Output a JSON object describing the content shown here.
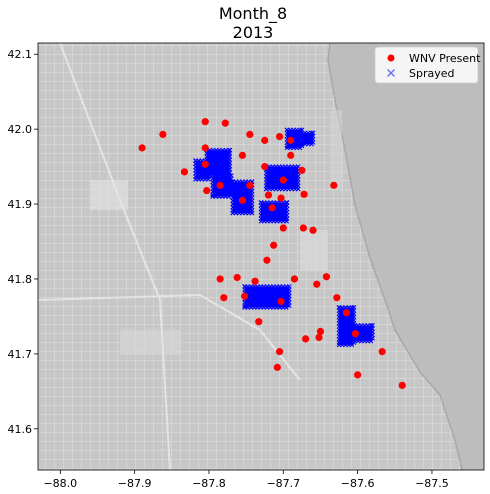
{
  "chart_data": {
    "type": "scatter",
    "title": "Month_8",
    "subtitle": "2013",
    "xlim": [
      -88.03,
      -87.43
    ],
    "ylim": [
      41.545,
      42.115
    ],
    "xticks": [
      -88.0,
      -87.9,
      -87.8,
      -87.7,
      -87.6,
      -87.5
    ],
    "xtick_labels": [
      "−88.0",
      "−87.9",
      "−87.8",
      "−87.7",
      "−87.6",
      "−87.5"
    ],
    "yticks": [
      41.6,
      41.7,
      41.8,
      41.9,
      42.0,
      42.1
    ],
    "ytick_labels": [
      "41.6",
      "41.7",
      "41.8",
      "41.9",
      "42.0",
      "42.1"
    ],
    "background": "map",
    "legend": {
      "placement": "top-right",
      "entries": [
        {
          "label": "WNV Present",
          "marker": "circle",
          "color": "#ff0000"
        },
        {
          "label": "Sprayed",
          "marker": "x",
          "color": "#6a6aff"
        }
      ]
    },
    "colors": {
      "wnv": "#ff0000",
      "sprayed": "#0000ff",
      "map_bg": "#bdbdbd"
    },
    "series": [
      {
        "name": "WNV Present",
        "points": [
          [
            -87.89,
            41.975
          ],
          [
            -87.862,
            41.993
          ],
          [
            -87.805,
            42.01
          ],
          [
            -87.778,
            42.008
          ],
          [
            -87.805,
            41.975
          ],
          [
            -87.755,
            41.965
          ],
          [
            -87.745,
            41.993
          ],
          [
            -87.725,
            41.985
          ],
          [
            -87.69,
            41.985
          ],
          [
            -87.705,
            41.99
          ],
          [
            -87.69,
            41.965
          ],
          [
            -87.725,
            41.95
          ],
          [
            -87.833,
            41.943
          ],
          [
            -87.805,
            41.953
          ],
          [
            -87.785,
            41.925
          ],
          [
            -87.803,
            41.918
          ],
          [
            -87.755,
            41.905
          ],
          [
            -87.745,
            41.925
          ],
          [
            -87.7,
            41.932
          ],
          [
            -87.675,
            41.945
          ],
          [
            -87.72,
            41.912
          ],
          [
            -87.703,
            41.908
          ],
          [
            -87.715,
            41.895
          ],
          [
            -87.672,
            41.913
          ],
          [
            -87.632,
            41.925
          ],
          [
            -87.7,
            41.868
          ],
          [
            -87.673,
            41.868
          ],
          [
            -87.66,
            41.865
          ],
          [
            -87.713,
            41.845
          ],
          [
            -87.722,
            41.825
          ],
          [
            -87.785,
            41.8
          ],
          [
            -87.762,
            41.802
          ],
          [
            -87.738,
            41.797
          ],
          [
            -87.685,
            41.8
          ],
          [
            -87.642,
            41.803
          ],
          [
            -87.655,
            41.793
          ],
          [
            -87.78,
            41.775
          ],
          [
            -87.752,
            41.777
          ],
          [
            -87.703,
            41.77
          ],
          [
            -87.628,
            41.775
          ],
          [
            -87.615,
            41.755
          ],
          [
            -87.733,
            41.743
          ],
          [
            -87.65,
            41.73
          ],
          [
            -87.652,
            41.722
          ],
          [
            -87.67,
            41.72
          ],
          [
            -87.603,
            41.727
          ],
          [
            -87.705,
            41.703
          ],
          [
            -87.567,
            41.703
          ],
          [
            -87.708,
            41.682
          ],
          [
            -87.6,
            41.672
          ],
          [
            -87.54,
            41.658
          ]
        ]
      },
      {
        "name": "Sprayed",
        "regions": [
          {
            "x": [
              -87.695,
              -87.675
            ],
            "y": [
              41.975,
              41.999
            ]
          },
          {
            "x": [
              -87.675,
              -87.66
            ],
            "y": [
              41.98,
              41.995
            ]
          },
          {
            "x": [
              -87.803,
              -87.772
            ],
            "y": [
              41.938,
              41.972
            ]
          },
          {
            "x": [
              -87.818,
              -87.8
            ],
            "y": [
              41.933,
              41.958
            ]
          },
          {
            "x": [
              -87.795,
              -87.77
            ],
            "y": [
              41.91,
              41.938
            ]
          },
          {
            "x": [
              -87.768,
              -87.742
            ],
            "y": [
              41.888,
              41.93
            ]
          },
          {
            "x": [
              -87.723,
              -87.68
            ],
            "y": [
              41.92,
              41.95
            ]
          },
          {
            "x": [
              -87.73,
              -87.695
            ],
            "y": [
              41.877,
              41.902
            ]
          },
          {
            "x": [
              -87.752,
              -87.692
            ],
            "y": [
              41.762,
              41.79
            ]
          },
          {
            "x": [
              -87.608,
              -87.58
            ],
            "y": [
              41.717,
              41.738
            ]
          },
          {
            "x": [
              -87.625,
              -87.605
            ],
            "y": [
              41.712,
              41.762
            ]
          }
        ]
      }
    ]
  }
}
